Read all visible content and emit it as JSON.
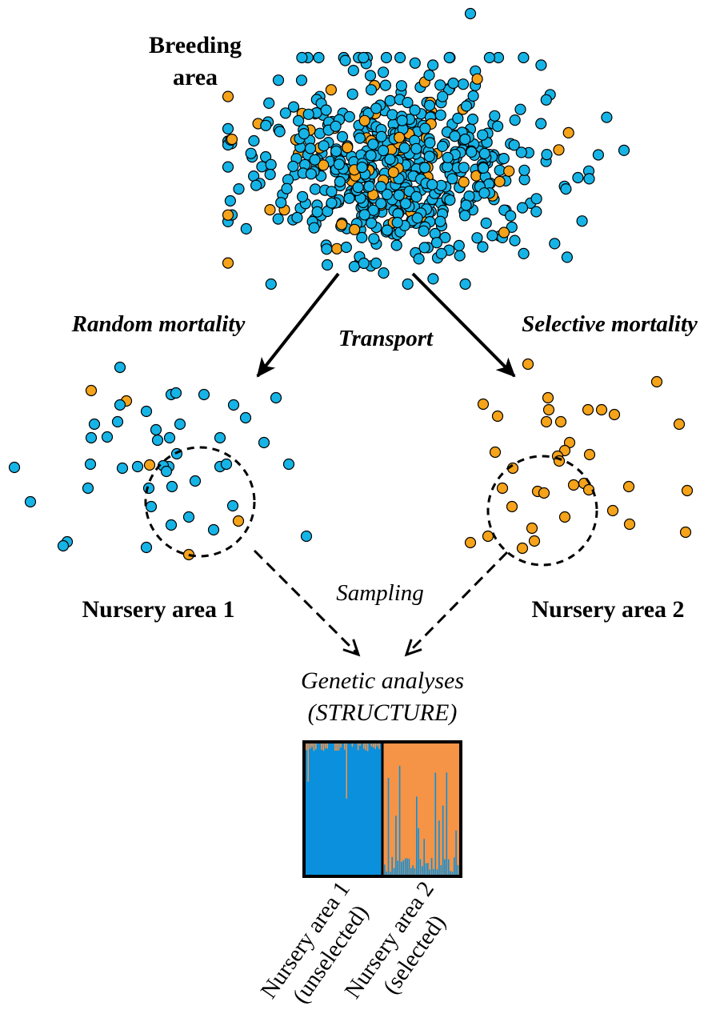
{
  "labels": {
    "breeding_area_line1": "Breeding",
    "breeding_area_line2": "area",
    "random_mortality": "Random mortality",
    "selective_mortality": "Selective mortality",
    "transport": "Transport",
    "nursery_area_1": "Nursery area 1",
    "nursery_area_2": "Nursery area 2",
    "sampling": "Sampling",
    "genetic_analyses": "Genetic analyses",
    "structure": "(STRUCTURE)",
    "bar_label_1_line1": "Nursery area 1",
    "bar_label_1_line2": "(unselected)",
    "bar_label_2_line1": "Nursery area 2",
    "bar_label_2_line2": "(selected)"
  },
  "colors": {
    "genotype_blue": "#16b4e6",
    "genotype_orange": "#f5a31a",
    "structure_blue": "#0a90dc",
    "structure_orange": "#f59346",
    "arrow": "#000000"
  }
}
